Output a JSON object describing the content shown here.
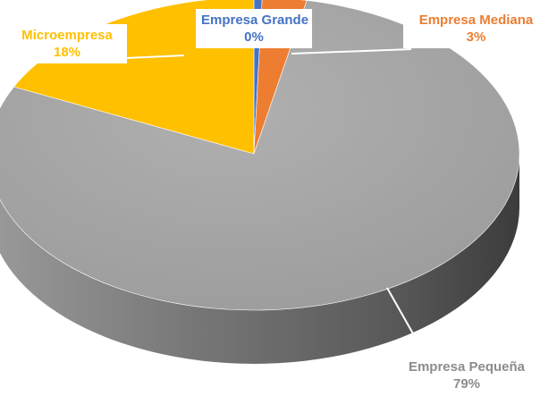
{
  "chart_data": {
    "type": "pie",
    "style": "3d",
    "title": "",
    "legend": "none",
    "data_labels": "category and percent",
    "slices": [
      {
        "category": "Empresa Grande",
        "value": 0.5,
        "label": "0%",
        "color": "#4472c4"
      },
      {
        "category": "Empresa Mediana",
        "value": 2.7,
        "label": "3%",
        "color": "#ed7d31"
      },
      {
        "category": "Empresa Pequeña",
        "value": 79,
        "label": "79%",
        "color": "#a5a5a5"
      },
      {
        "category": "Microempresa",
        "value": 18,
        "label": "18%",
        "color": "#ffc000"
      }
    ]
  }
}
